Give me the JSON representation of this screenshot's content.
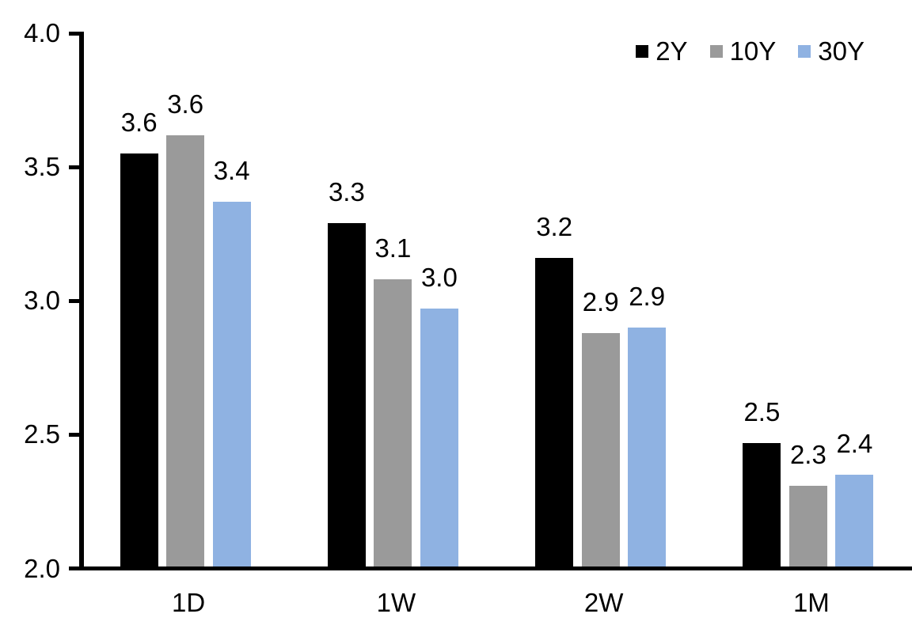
{
  "chart_data": {
    "type": "bar",
    "title": "",
    "categories": [
      "1D",
      "1W",
      "2W",
      "1M"
    ],
    "series": [
      {
        "name": "2Y",
        "color": "#000000",
        "values": [
          3.55,
          3.29,
          3.16,
          2.47
        ],
        "labels": [
          "3.6",
          "3.3",
          "3.2",
          "2.5"
        ]
      },
      {
        "name": "10Y",
        "color": "#9A9A9A",
        "values": [
          3.62,
          3.08,
          2.88,
          2.31
        ],
        "labels": [
          "3.6",
          "3.1",
          "2.9",
          "2.3"
        ]
      },
      {
        "name": "30Y",
        "color": "#8FB2E2",
        "values": [
          3.37,
          2.97,
          2.9,
          2.35
        ],
        "labels": [
          "3.4",
          "3.0",
          "2.9",
          "2.4"
        ]
      }
    ],
    "xlabel": "",
    "ylabel": "",
    "ylim": [
      2.0,
      4.0
    ],
    "yticks": [
      "2.0",
      "2.5",
      "3.0",
      "3.5",
      "4.0"
    ],
    "grid": false,
    "legend_position": "top-right",
    "axis_color": "#000000",
    "background_color": "#FFFFFF",
    "text_color": "#000000"
  }
}
